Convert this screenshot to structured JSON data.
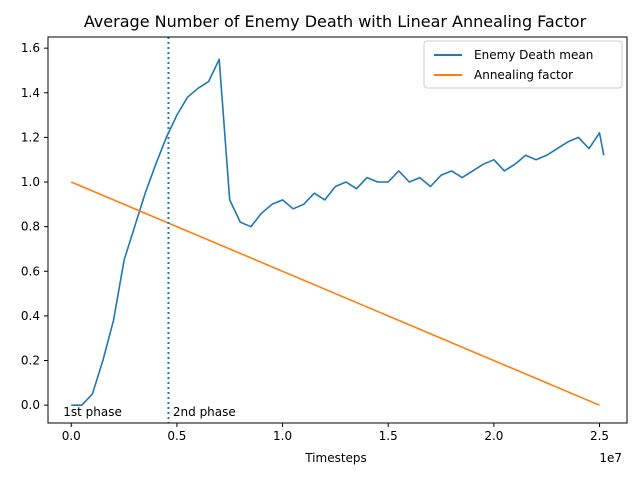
{
  "chart_data": {
    "type": "line",
    "title": "Average Number of Enemy Death with Linear Annealing Factor",
    "xlabel": "Timesteps",
    "ylabel": "",
    "x_scale_label": "1e7",
    "xlim": [
      -0.11,
      2.63
    ],
    "ylim": [
      -0.08,
      1.65
    ],
    "xticks": [
      0.0,
      0.5,
      1.0,
      1.5,
      2.0,
      2.5
    ],
    "xtick_labels": [
      "0.0",
      "0.5",
      "1.0",
      "1.5",
      "2.0",
      "2.5"
    ],
    "yticks": [
      0.0,
      0.2,
      0.4,
      0.6,
      0.8,
      1.0,
      1.2,
      1.4,
      1.6
    ],
    "ytick_labels": [
      "0.0",
      "0.2",
      "0.4",
      "0.6",
      "0.8",
      "1.0",
      "1.2",
      "1.4",
      "1.6"
    ],
    "legend_position": "top-right",
    "colors": {
      "series1": "#1f77b4",
      "series2": "#ff7f0e",
      "axes": "#000000"
    },
    "phase_divider_x": 0.46,
    "annotations": [
      {
        "text": "1st phase",
        "x": 0.0,
        "y": -0.03
      },
      {
        "text": "2nd phase",
        "x": 0.5,
        "y": -0.03
      }
    ],
    "series": [
      {
        "name": "Enemy Death mean",
        "x": [
          0.0,
          0.05,
          0.1,
          0.15,
          0.2,
          0.25,
          0.3,
          0.35,
          0.4,
          0.45,
          0.5,
          0.55,
          0.6,
          0.65,
          0.7,
          0.75,
          0.8,
          0.85,
          0.9,
          0.95,
          1.0,
          1.05,
          1.1,
          1.15,
          1.2,
          1.25,
          1.3,
          1.35,
          1.4,
          1.45,
          1.5,
          1.55,
          1.6,
          1.65,
          1.7,
          1.75,
          1.8,
          1.85,
          1.9,
          1.95,
          2.0,
          2.05,
          2.1,
          2.15,
          2.2,
          2.25,
          2.3,
          2.35,
          2.4,
          2.45,
          2.5,
          2.52
        ],
        "values": [
          0.0,
          0.0,
          0.05,
          0.2,
          0.38,
          0.65,
          0.8,
          0.95,
          1.08,
          1.2,
          1.3,
          1.38,
          1.42,
          1.45,
          1.55,
          0.92,
          0.82,
          0.8,
          0.86,
          0.9,
          0.92,
          0.88,
          0.9,
          0.95,
          0.92,
          0.98,
          1.0,
          0.97,
          1.02,
          1.0,
          1.0,
          1.05,
          1.0,
          1.02,
          0.98,
          1.03,
          1.05,
          1.02,
          1.05,
          1.08,
          1.1,
          1.05,
          1.08,
          1.12,
          1.1,
          1.12,
          1.15,
          1.18,
          1.2,
          1.15,
          1.22,
          1.12
        ]
      },
      {
        "name": "Annealing factor",
        "x": [
          0.0,
          2.5
        ],
        "values": [
          1.0,
          0.0
        ]
      }
    ]
  }
}
